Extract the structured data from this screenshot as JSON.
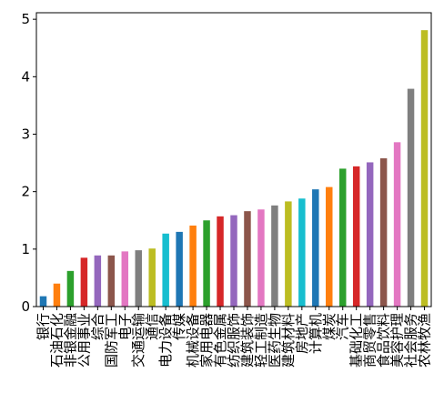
{
  "chart_data": {
    "type": "bar",
    "categories": [
      "银行",
      "石油石化",
      "非银金融",
      "公用事业",
      "综合",
      "国防军工",
      "电子",
      "交通运输",
      "通信",
      "电力设备",
      "传媒",
      "机械设备",
      "家用电器",
      "有色金属",
      "纺织服饰",
      "建筑装饰",
      "轻工制造",
      "医药生物",
      "建筑材料",
      "房地产",
      "计算机",
      "煤炭",
      "汽车",
      "基础化工",
      "商贸零售",
      "食品饮料",
      "美容护理",
      "社会服务",
      "农林牧渔"
    ],
    "values": [
      0.18,
      0.4,
      0.62,
      0.85,
      0.89,
      0.89,
      0.96,
      0.98,
      1.01,
      1.27,
      1.3,
      1.41,
      1.5,
      1.57,
      1.59,
      1.66,
      1.69,
      1.76,
      1.83,
      1.88,
      2.04,
      2.08,
      2.4,
      2.44,
      2.51,
      2.58,
      2.86,
      3.79,
      4.81
    ],
    "colors": [
      "#1f77b4",
      "#ff7f0e",
      "#2ca02c",
      "#d62728",
      "#9467bd",
      "#8c564b",
      "#e377c2",
      "#7f7f7f",
      "#bcbd22",
      "#17becf"
    ],
    "ylim": [
      0,
      5.05
    ],
    "yticks": [
      0,
      1,
      2,
      3,
      4,
      5
    ]
  }
}
